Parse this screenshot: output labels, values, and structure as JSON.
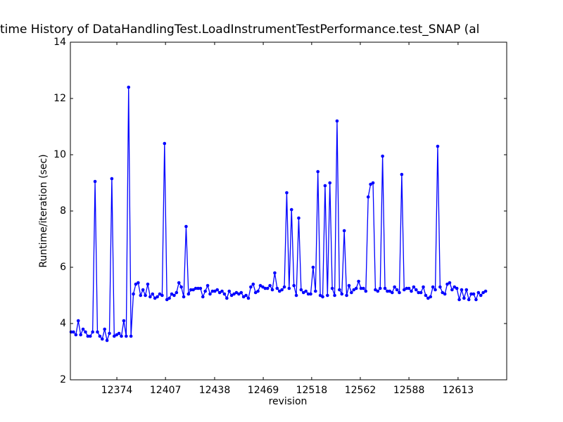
{
  "chart_data": {
    "type": "line",
    "title": "time History of DataHandlingTest.LoadInstrumentTestPerformance.test_SNAP (al",
    "xlabel": "revision",
    "ylabel": "Runtime/iteration (sec)",
    "x": [
      0,
      1,
      2,
      3,
      4,
      5,
      6,
      7,
      8,
      9,
      10,
      11,
      12,
      13,
      14,
      15,
      16,
      17,
      18,
      19,
      20,
      21,
      22,
      23,
      24,
      25,
      26,
      27,
      28,
      29,
      30,
      31,
      32,
      33,
      34,
      35,
      36,
      37,
      38,
      39,
      40,
      41,
      42,
      43,
      44,
      45,
      46,
      47,
      48,
      49,
      50,
      51,
      52,
      53,
      54,
      55,
      56,
      57,
      58,
      59,
      60,
      61,
      62,
      63,
      64,
      65,
      66,
      67,
      68,
      69,
      70,
      71,
      72,
      73,
      74,
      75,
      76,
      77,
      78,
      79,
      80,
      81,
      82,
      83,
      84,
      85,
      86,
      87,
      88,
      89,
      90,
      91,
      92,
      93,
      94,
      95,
      96,
      97,
      98,
      99,
      100,
      101,
      102,
      103,
      104,
      105,
      106,
      107,
      108,
      109,
      110,
      111,
      112,
      113,
      114,
      115,
      116,
      117,
      118,
      119,
      120,
      121,
      122,
      123,
      124,
      125,
      126,
      127,
      128,
      129,
      130,
      131,
      132,
      133,
      134,
      135,
      136,
      137,
      138,
      139,
      140,
      141,
      142,
      143,
      144,
      145,
      146,
      147,
      148,
      149,
      150,
      151,
      152,
      153,
      154,
      155,
      156,
      157,
      158,
      159,
      160,
      161,
      162,
      163,
      164,
      165,
      166,
      167,
      168,
      169,
      170,
      171,
      172,
      173
    ],
    "series": [
      {
        "color": "#0000ff",
        "values": [
          3.7,
          3.7,
          3.6,
          4.1,
          3.6,
          3.8,
          3.7,
          3.55,
          3.55,
          3.7,
          9.05,
          3.7,
          3.55,
          3.45,
          3.8,
          3.4,
          3.65,
          9.15,
          3.55,
          3.6,
          3.65,
          3.55,
          4.1,
          3.55,
          12.4,
          3.55,
          5.05,
          5.4,
          5.45,
          5.0,
          5.2,
          5.0,
          5.4,
          4.95,
          5.05,
          4.9,
          4.95,
          5.05,
          5.0,
          10.4,
          4.85,
          4.9,
          5.05,
          5.0,
          5.1,
          5.45,
          5.3,
          4.95,
          7.45,
          5.05,
          5.2,
          5.2,
          5.25,
          5.25,
          5.25,
          4.95,
          5.15,
          5.35,
          5.05,
          5.15,
          5.15,
          5.2,
          5.1,
          5.15,
          5.05,
          4.9,
          5.15,
          5.0,
          5.05,
          5.1,
          5.05,
          5.1,
          4.95,
          5.0,
          4.9,
          5.3,
          5.4,
          5.1,
          5.15,
          5.35,
          5.3,
          5.25,
          5.25,
          5.35,
          5.2,
          5.8,
          5.25,
          5.15,
          5.2,
          5.3,
          8.65,
          5.25,
          8.05,
          5.35,
          5.0,
          7.75,
          5.2,
          5.1,
          5.15,
          5.05,
          5.05,
          6.0,
          5.15,
          9.4,
          5.0,
          4.95,
          8.9,
          5.0,
          9.0,
          5.25,
          5.0,
          11.2,
          5.2,
          5.05,
          7.3,
          5.0,
          5.35,
          5.1,
          5.2,
          5.25,
          5.5,
          5.25,
          5.25,
          5.15,
          8.5,
          8.95,
          9.0,
          5.2,
          5.15,
          5.25,
          9.95,
          5.25,
          5.15,
          5.15,
          5.1,
          5.3,
          5.2,
          5.1,
          9.3,
          5.2,
          5.25,
          5.25,
          5.15,
          5.3,
          5.2,
          5.1,
          5.1,
          5.3,
          5.0,
          4.9,
          4.95,
          5.3,
          5.2,
          10.3,
          5.3,
          5.1,
          5.05,
          5.4,
          5.45,
          5.2,
          5.3,
          5.25,
          4.85,
          5.2,
          4.9,
          5.2,
          4.85,
          5.05,
          5.05,
          4.85,
          5.1,
          5.0,
          5.1,
          5.15
        ]
      }
    ],
    "xlim": [
      -0.3,
      181.8
    ],
    "xticks": [
      {
        "value": 19.1,
        "label": "12374"
      },
      {
        "value": 39.4,
        "label": "12407"
      },
      {
        "value": 59.9,
        "label": "12438"
      },
      {
        "value": 80.2,
        "label": "12469"
      },
      {
        "value": 100.4,
        "label": "12518"
      },
      {
        "value": 120.7,
        "label": "12562"
      },
      {
        "value": 141,
        "label": "12588"
      },
      {
        "value": 161.5,
        "label": "12613"
      }
    ],
    "ylim": [
      2,
      14
    ],
    "yticks": [
      2,
      4,
      6,
      8,
      10,
      12,
      14
    ]
  }
}
